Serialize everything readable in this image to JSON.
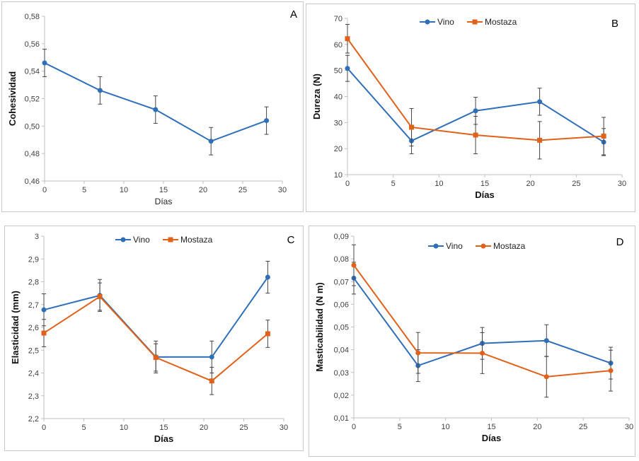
{
  "colors": {
    "vino": "#2E6FB7",
    "mostaza": "#E0611A",
    "axis": "#bfbfbf",
    "errorbar": "#444444"
  },
  "chart_data": [
    {
      "id": "A",
      "type": "line",
      "panel_label": "A",
      "xlabel": "Días",
      "ylabel": "Cohesividad",
      "xlim": [
        0,
        30
      ],
      "ylim": [
        0.46,
        0.58
      ],
      "xticks": [
        0,
        5,
        10,
        15,
        20,
        25,
        30
      ],
      "xtick_labels": [
        "0",
        "5",
        "10",
        "15",
        "20",
        "25",
        "30"
      ],
      "yticks": [
        0.46,
        0.48,
        0.5,
        0.52,
        0.54,
        0.56,
        0.58
      ],
      "ytick_labels": [
        "0,46",
        "0,48",
        "0,50",
        "0,52",
        "0,54",
        "0,56",
        "0,58"
      ],
      "legend": false,
      "x_axis_bold": false,
      "series": [
        {
          "color": "#2E6FB7",
          "marker": "circle",
          "x": [
            0,
            7,
            14,
            21,
            28
          ],
          "y": [
            0.546,
            0.526,
            0.512,
            0.489,
            0.504
          ],
          "err": [
            0.01,
            0.01,
            0.01,
            0.01,
            0.01
          ]
        }
      ]
    },
    {
      "id": "B",
      "type": "line",
      "panel_label": "B",
      "xlabel": "Días",
      "ylabel": "Dureza (N)",
      "xlim": [
        0,
        30
      ],
      "ylim": [
        10,
        70
      ],
      "xticks": [
        0,
        5,
        10,
        15,
        20,
        25,
        30
      ],
      "xtick_labels": [
        "0",
        "5",
        "10",
        "15",
        "20",
        "25",
        "30"
      ],
      "yticks": [
        10,
        20,
        30,
        40,
        50,
        60,
        70
      ],
      "ytick_labels": [
        "10",
        "20",
        "30",
        "40",
        "50",
        "60",
        "70"
      ],
      "legend": true,
      "legend_position": "top",
      "x_axis_bold": true,
      "series": [
        {
          "name": "Vino",
          "color": "#2E6FB7",
          "marker": "circle",
          "x": [
            0,
            7,
            14,
            21,
            28
          ],
          "y": [
            50.8,
            23.0,
            34.5,
            38.0,
            22.5
          ],
          "err": [
            5.0,
            5.0,
            5.2,
            5.2,
            5.2
          ]
        },
        {
          "name": "Mostaza",
          "color": "#E0611A",
          "marker": "square",
          "x": [
            0,
            7,
            14,
            21,
            28
          ],
          "y": [
            62.2,
            28.2,
            25.2,
            23.2,
            24.8
          ],
          "err": [
            5.5,
            7.2,
            7.2,
            7.2,
            7.2
          ]
        }
      ]
    },
    {
      "id": "C",
      "type": "line",
      "panel_label": "C",
      "xlabel": "Días",
      "ylabel": "Elasticidad (mm)",
      "xlim": [
        0,
        30
      ],
      "ylim": [
        2.2,
        3.0
      ],
      "xticks": [
        0,
        5,
        10,
        15,
        20,
        25,
        30
      ],
      "xtick_labels": [
        "0",
        "5",
        "10",
        "15",
        "20",
        "25",
        "30"
      ],
      "yticks": [
        2.2,
        2.3,
        2.4,
        2.5,
        2.6,
        2.7,
        2.8,
        2.9,
        3.0
      ],
      "ytick_labels": [
        "2,2",
        "2,3",
        "2,4",
        "2,5",
        "2,6",
        "2,7",
        "2,8",
        "2,9",
        "3"
      ],
      "legend": true,
      "legend_position": "top",
      "x_axis_bold": true,
      "series": [
        {
          "name": "Vino",
          "color": "#2E6FB7",
          "marker": "circle",
          "x": [
            0,
            7,
            14,
            21,
            28
          ],
          "y": [
            2.677,
            2.74,
            2.47,
            2.47,
            2.82
          ],
          "err": [
            0.07,
            0.07,
            0.07,
            0.07,
            0.07
          ]
        },
        {
          "name": "Mostaza",
          "color": "#E0611A",
          "marker": "square",
          "x": [
            0,
            7,
            14,
            21,
            28
          ],
          "y": [
            2.575,
            2.735,
            2.468,
            2.365,
            2.572
          ],
          "err": [
            0.06,
            0.06,
            0.06,
            0.06,
            0.06
          ]
        }
      ]
    },
    {
      "id": "D",
      "type": "line",
      "panel_label": "D",
      "xlabel": "Días",
      "ylabel": "Masticabilidad (N m)",
      "xlim": [
        0,
        30
      ],
      "ylim": [
        0.01,
        0.09
      ],
      "xticks": [
        0,
        5,
        10,
        15,
        20,
        25,
        30
      ],
      "xtick_labels": [
        "0",
        "5",
        "10",
        "15",
        "20",
        "25",
        "30"
      ],
      "yticks": [
        0.01,
        0.02,
        0.03,
        0.04,
        0.05,
        0.06,
        0.07,
        0.08,
        0.09
      ],
      "ytick_labels": [
        "0,01",
        "0,02",
        "0,03",
        "0,04",
        "0,05",
        "0,06",
        "0,07",
        "0,08",
        "0,09"
      ],
      "legend": true,
      "legend_position": "top",
      "x_axis_bold": true,
      "series": [
        {
          "name": "Vino",
          "color": "#2E6FB7",
          "marker": "circle",
          "x": [
            0,
            7,
            14,
            21,
            28
          ],
          "y": [
            0.0715,
            0.033,
            0.0428,
            0.044,
            0.0341
          ],
          "err": [
            0.007,
            0.007,
            0.007,
            0.007,
            0.007
          ]
        },
        {
          "name": "Mostaza",
          "color": "#E0611A",
          "marker": "circle",
          "x": [
            0,
            7,
            14,
            21,
            28
          ],
          "y": [
            0.0772,
            0.0386,
            0.0385,
            0.0281,
            0.0308
          ],
          "err": [
            0.009,
            0.009,
            0.009,
            0.009,
            0.009
          ]
        }
      ]
    }
  ]
}
